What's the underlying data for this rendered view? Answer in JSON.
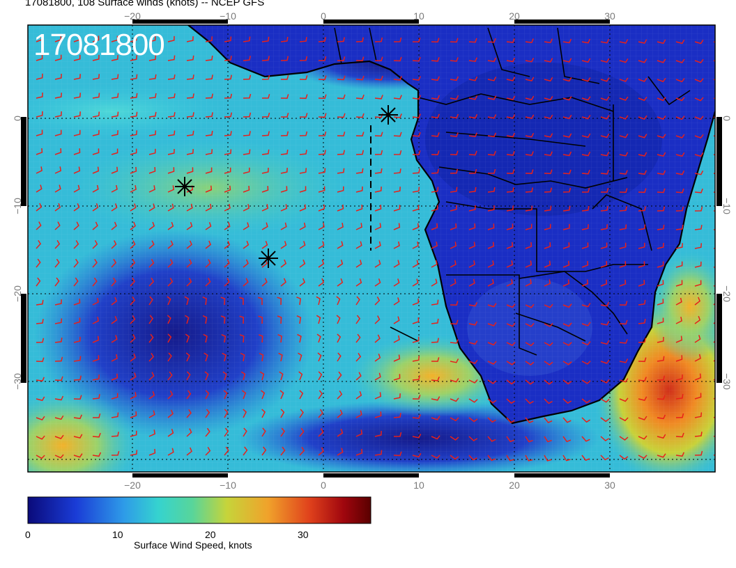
{
  "header": {
    "title": "17081800, 108 Surface winds (knots) -- NCEP GFS",
    "stamp": "17081800"
  },
  "map": {
    "lon_ticks": [
      "−20",
      "−10",
      "0",
      "10",
      "20",
      "30"
    ],
    "lat_ticks": [
      "0",
      "−10",
      "−20",
      "−30"
    ],
    "barb_color": "#e8201a",
    "coast_color": "#000000"
  },
  "colorbar": {
    "label": "Surface Wind Speed, knots",
    "ticks": [
      "0",
      "10",
      "20",
      "30"
    ],
    "colors": [
      "#0a0a7a",
      "#1a3cd6",
      "#2e9be8",
      "#35d3cf",
      "#58d59a",
      "#c6d43a",
      "#f0a22b",
      "#e0421c",
      "#a0060e",
      "#5a0000"
    ]
  }
}
